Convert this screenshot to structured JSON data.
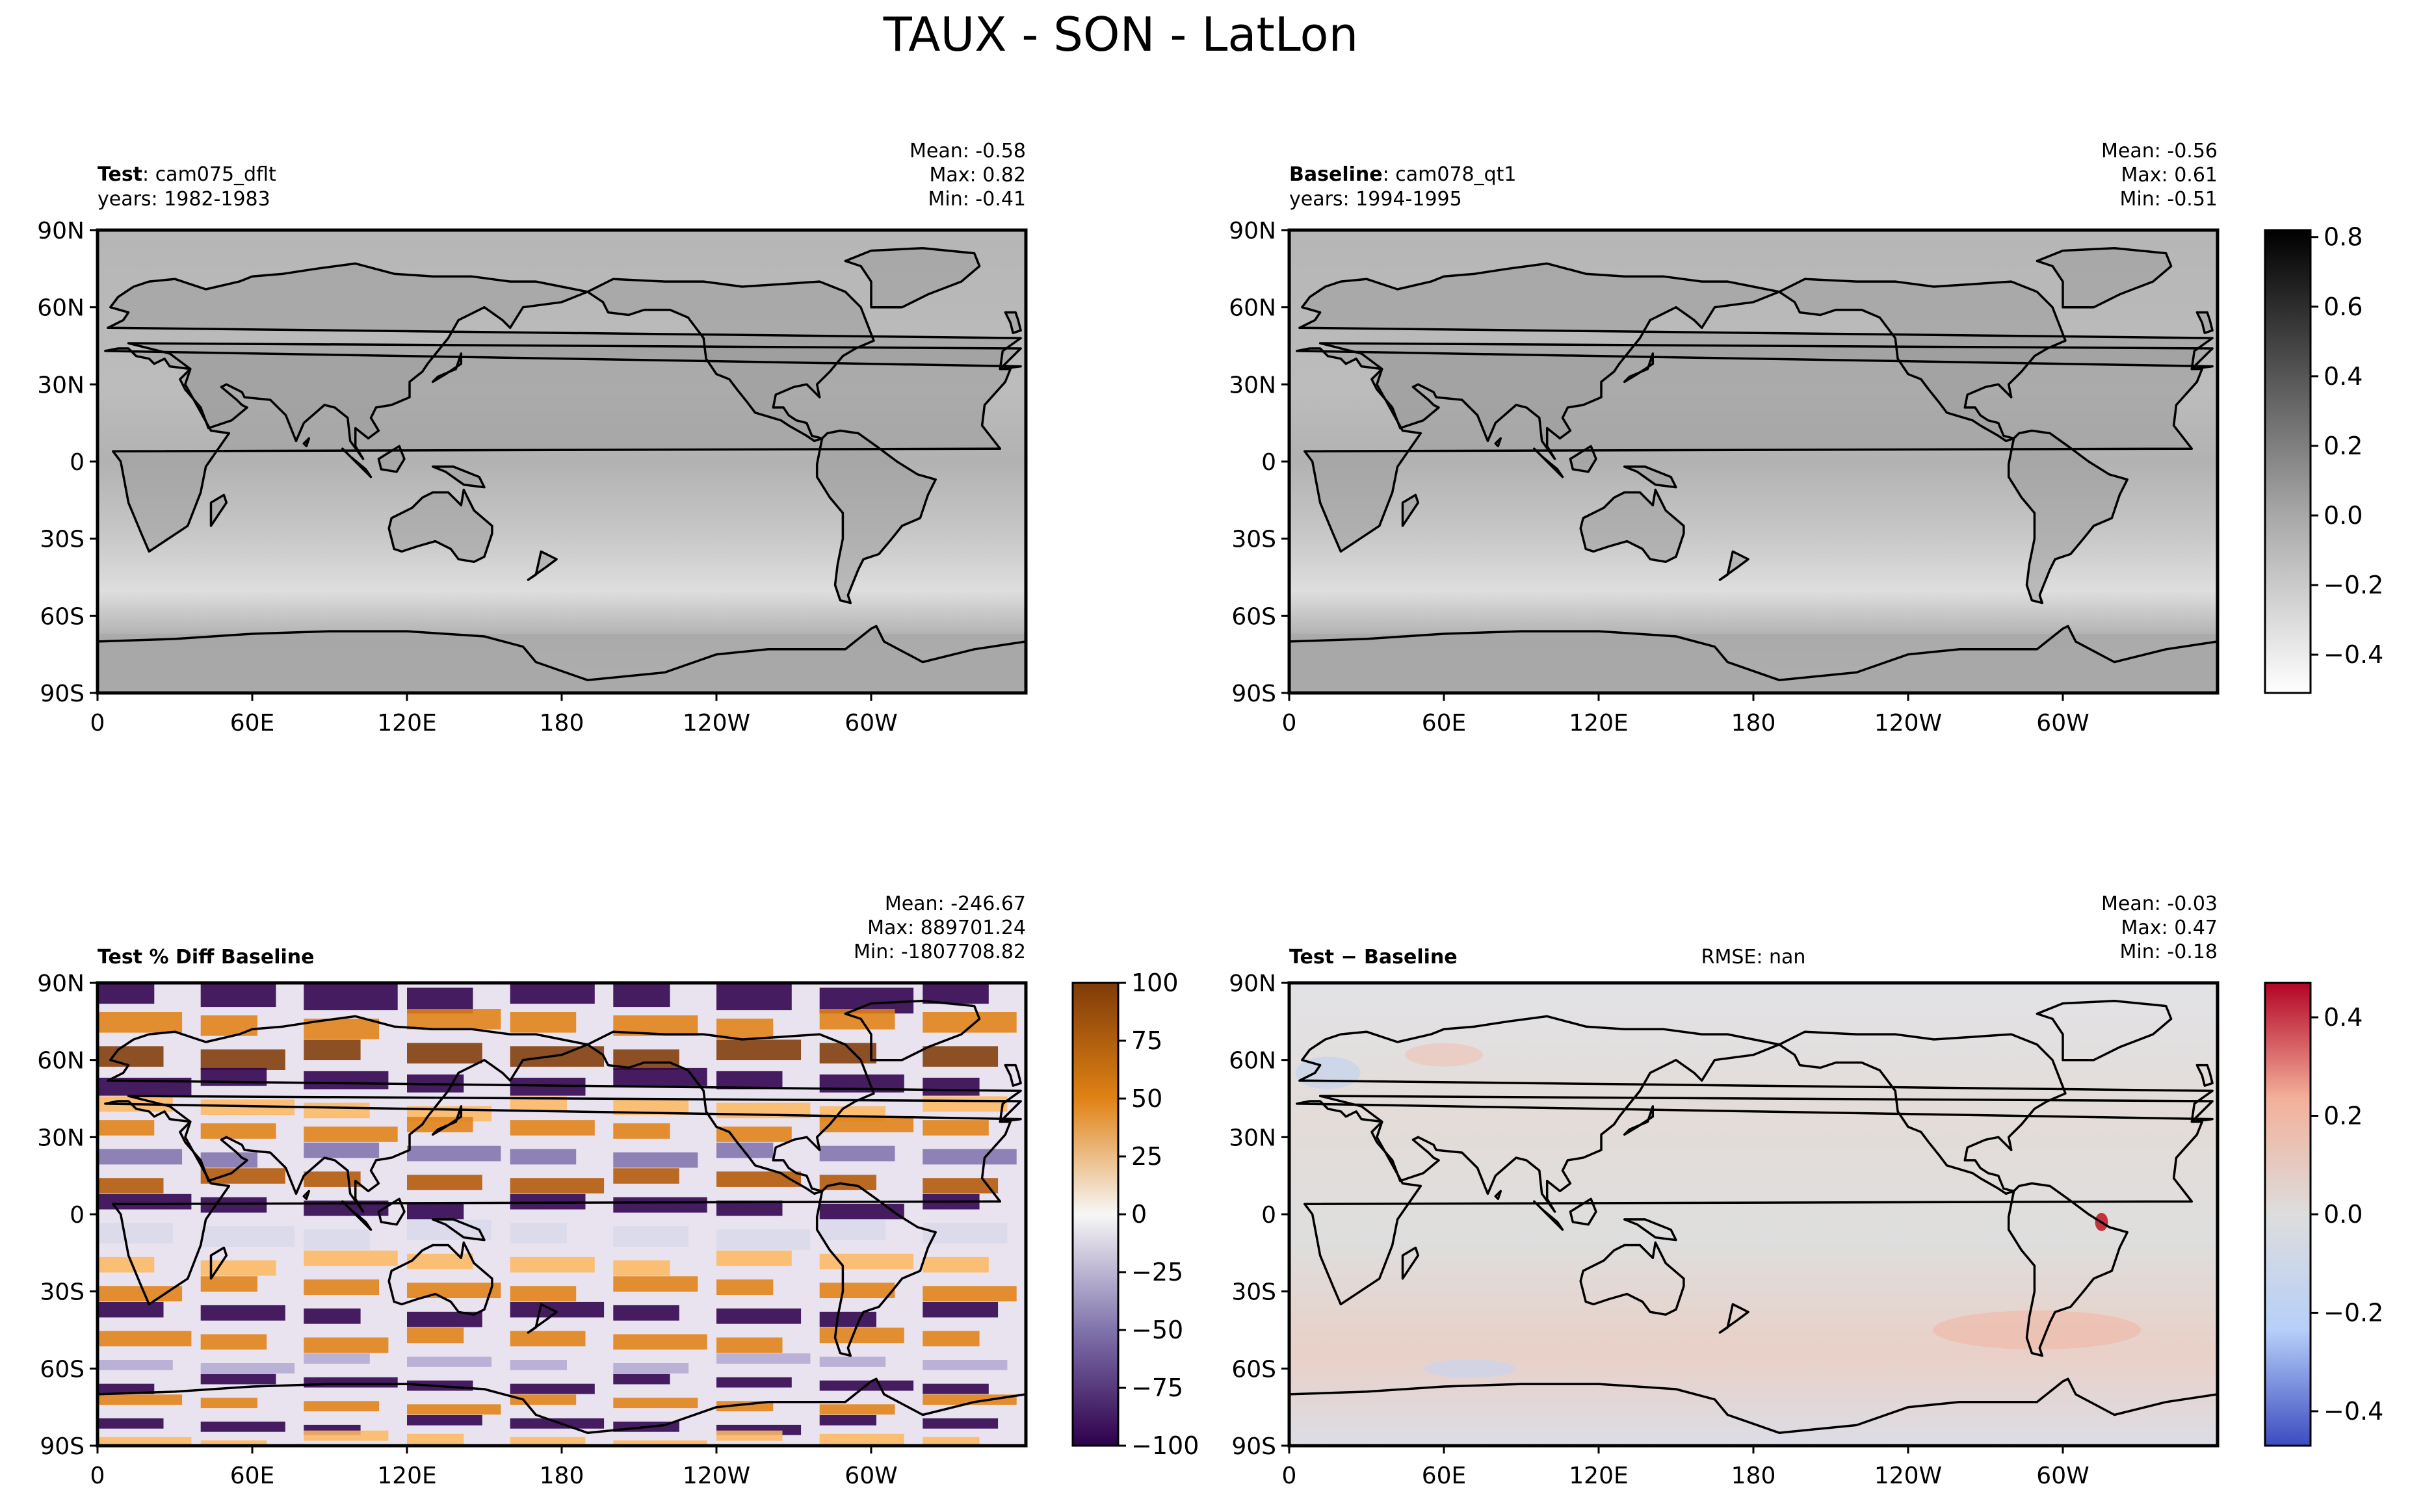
{
  "title": "TAUX - SON - LatLon",
  "panels": [
    {
      "id": "test",
      "label_bold": "Test",
      "label_sep": ": ",
      "label_text": "cam075_dflt",
      "years": "years: 1982-1983",
      "stats": [
        "Mean: -0.58",
        "Max:  0.82",
        "Min: -0.41"
      ],
      "center_text": ""
    },
    {
      "id": "baseline",
      "label_bold": "Baseline",
      "label_sep": ": ",
      "label_text": "cam078_qt1",
      "years": "years: 1994-1995",
      "stats": [
        "Mean: -0.56",
        "Max:  0.61",
        "Min: -0.51"
      ],
      "center_text": ""
    },
    {
      "id": "pctdiff",
      "label_bold": "Test % Diff Baseline",
      "label_sep": "",
      "label_text": "",
      "years": "",
      "stats": [
        "Mean: -246.67",
        "Max: 889701.24",
        "Min: -1807708.82"
      ],
      "center_text": ""
    },
    {
      "id": "diff",
      "label_bold": "Test − Baseline",
      "label_sep": "",
      "label_text": "",
      "years": "",
      "stats": [
        "Mean: -0.03",
        "Max:  0.47",
        "Min: -0.18"
      ],
      "center_text": "RMSE: nan"
    }
  ],
  "axes": {
    "lat_ticks": [
      "90N",
      "60N",
      "30N",
      "0",
      "30S",
      "60S",
      "90S"
    ],
    "lon_ticks": [
      "0",
      "60E",
      "120E",
      "180",
      "120W",
      "60W"
    ]
  },
  "colorbars": [
    {
      "id": "gray",
      "ticks": [
        "0.8",
        "0.6",
        "0.4",
        "0.2",
        "0.0",
        "−0.2",
        "−0.4"
      ],
      "tick_values": [
        0.8,
        0.6,
        0.4,
        0.2,
        0.0,
        -0.2,
        -0.4
      ],
      "range": [
        -0.51,
        0.82
      ],
      "colors": [
        "#ffffff",
        "#000000"
      ]
    },
    {
      "id": "puor",
      "ticks": [
        "100",
        "75",
        "50",
        "25",
        "0",
        "−25",
        "−50",
        "−75",
        "−100"
      ],
      "tick_values": [
        100,
        75,
        50,
        25,
        0,
        -25,
        -50,
        -75,
        -100
      ],
      "range": [
        -100,
        100
      ],
      "colors": [
        "#2d004b",
        "#8073ac",
        "#f7f7f7",
        "#e08214",
        "#7f3b08"
      ]
    },
    {
      "id": "rdbu",
      "ticks": [
        "0.4",
        "0.2",
        "0.0",
        "−0.2",
        "−0.4"
      ],
      "tick_values": [
        0.4,
        0.2,
        0.0,
        -0.2,
        -0.4
      ],
      "range": [
        -0.47,
        0.47
      ],
      "colors": [
        "#3b4cc0",
        "#b7cff9",
        "#dddddd",
        "#f3b09a",
        "#b40426"
      ]
    }
  ],
  "chart_data": [
    {
      "type": "heatmap",
      "title": "Test: cam075_dflt",
      "xlabel": "",
      "ylabel": "",
      "x_range": [
        0,
        360
      ],
      "y_range": [
        -90,
        90
      ],
      "color_range": [
        -0.51,
        0.82
      ],
      "mean": -0.58,
      "max": 0.82,
      "min": -0.41
    },
    {
      "type": "heatmap",
      "title": "Baseline: cam078_qt1",
      "xlabel": "",
      "ylabel": "",
      "x_range": [
        0,
        360
      ],
      "y_range": [
        -90,
        90
      ],
      "color_range": [
        -0.51,
        0.82
      ],
      "mean": -0.56,
      "max": 0.61,
      "min": -0.51
    },
    {
      "type": "heatmap",
      "title": "Test % Diff Baseline",
      "xlabel": "",
      "ylabel": "",
      "x_range": [
        0,
        360
      ],
      "y_range": [
        -90,
        90
      ],
      "color_range": [
        -100,
        100
      ],
      "mean": -246.67,
      "max": 889701.24,
      "min": -1807708.82
    },
    {
      "type": "heatmap",
      "title": "Test − Baseline",
      "xlabel": "",
      "ylabel": "",
      "x_range": [
        0,
        360
      ],
      "y_range": [
        -90,
        90
      ],
      "color_range": [
        -0.47,
        0.47
      ],
      "mean": -0.03,
      "max": 0.47,
      "min": -0.18,
      "rmse": "nan"
    }
  ]
}
